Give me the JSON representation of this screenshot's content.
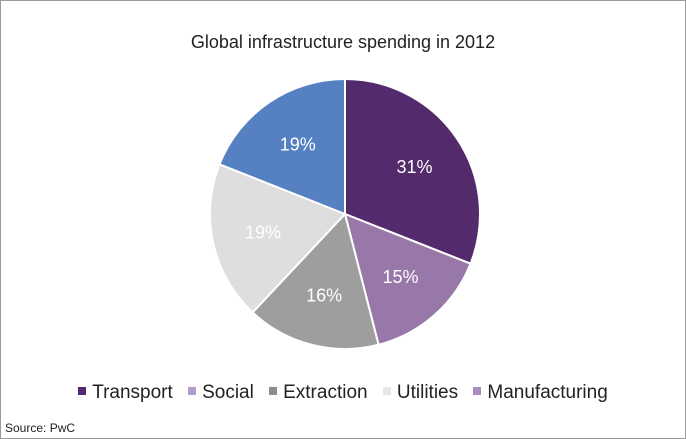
{
  "chart_data": {
    "type": "pie",
    "title": "Global infrastructure spending in 2012",
    "slices": [
      {
        "label": "Transport",
        "value": 31,
        "display": "31%",
        "color": "#532a6b",
        "label_color": "#ffffff"
      },
      {
        "label": "Social",
        "value": 15,
        "display": "15%",
        "color": "#9878a8",
        "label_color": "#ffffff"
      },
      {
        "label": "Extraction",
        "value": 16,
        "display": "16%",
        "color": "#9e9e9e",
        "label_color": "#ffffff"
      },
      {
        "label": "Utilities",
        "value": 19,
        "display": "19%",
        "color": "#dedede",
        "label_color": "#ffffff"
      },
      {
        "label": "Manufacturing",
        "value": 19,
        "display": "19%",
        "color": "#5581c3",
        "label_color": "#ffffff"
      }
    ],
    "legend": [
      {
        "label": "Transport",
        "color": "#532a6b"
      },
      {
        "label": "Social",
        "color": "#b49dcc"
      },
      {
        "label": "Extraction",
        "color": "#8d8d8d"
      },
      {
        "label": "Utilities",
        "color": "#e6e6e6"
      },
      {
        "label": "Manufacturing",
        "color": "#a78fc1"
      }
    ],
    "legend_position": "bottom",
    "source": "Source: PwC"
  }
}
